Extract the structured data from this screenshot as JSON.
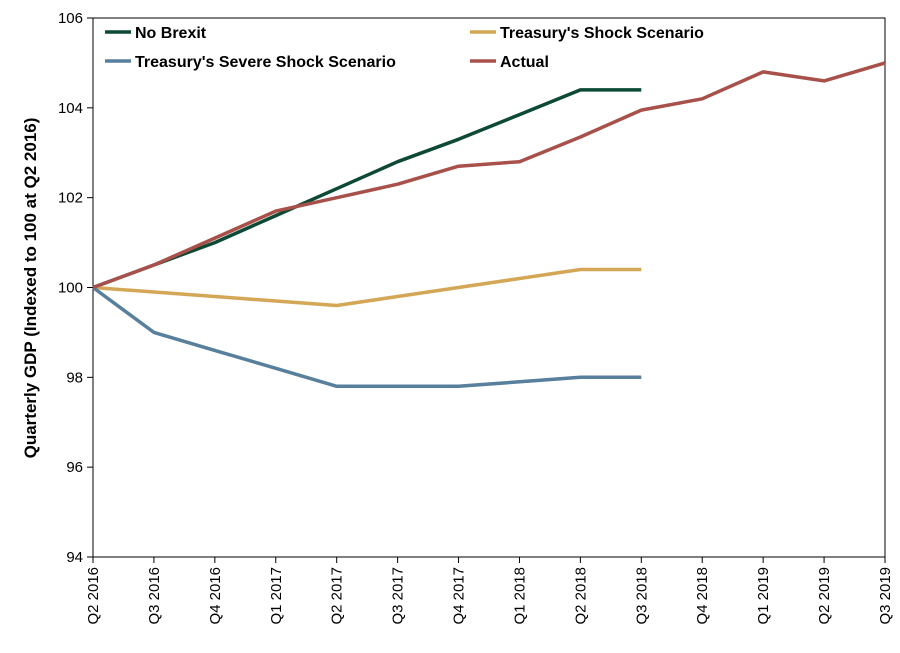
{
  "chart_data": {
    "type": "line",
    "categories": [
      "Q2 2016",
      "Q3 2016",
      "Q4 2016",
      "Q1 2017",
      "Q2 2017",
      "Q3 2017",
      "Q4 2017",
      "Q1 2018",
      "Q2 2018",
      "Q3 2018",
      "Q4 2018",
      "Q1 2019",
      "Q2 2019",
      "Q3 2019"
    ],
    "ylabel": "Quarterly GDP (Indexed to 100 at Q2 2016)",
    "xlabel": "",
    "ylim": [
      94,
      106
    ],
    "yticks": [
      "94",
      "96",
      "98",
      "100",
      "102",
      "104",
      "106"
    ],
    "grid": false,
    "legend_position": "top",
    "series": [
      {
        "name": "No Brexit",
        "color": "#0d4a36",
        "values": [
          100,
          100.5,
          101.0,
          101.6,
          102.2,
          102.8,
          103.3,
          103.85,
          104.4,
          104.4,
          null,
          null,
          null,
          null
        ]
      },
      {
        "name": "Treasury's Shock Scenario",
        "color": "#d4a756",
        "values": [
          100,
          99.9,
          99.8,
          99.7,
          99.6,
          99.8,
          100.0,
          100.2,
          100.4,
          100.4,
          null,
          null,
          null,
          null
        ]
      },
      {
        "name": "Treasury's Severe Shock Scenario",
        "color": "#587f9c",
        "values": [
          100,
          99.0,
          98.6,
          98.2,
          97.8,
          97.8,
          97.8,
          97.9,
          98.0,
          98.0,
          null,
          null,
          null,
          null
        ]
      },
      {
        "name": "Actual",
        "color": "#a8514b",
        "values": [
          100,
          100.5,
          101.1,
          101.7,
          102.0,
          102.3,
          102.7,
          102.8,
          103.35,
          103.95,
          104.2,
          104.8,
          104.6,
          105.0
        ]
      }
    ]
  }
}
